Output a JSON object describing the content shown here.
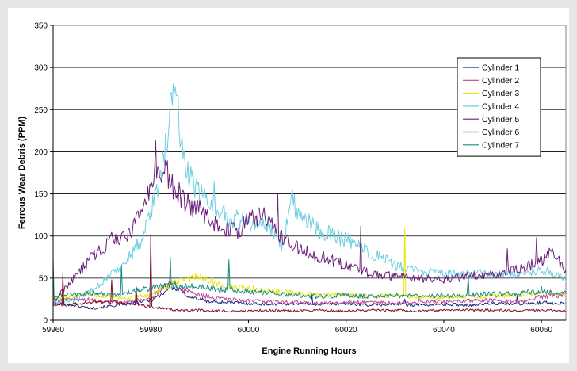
{
  "chart_data": {
    "type": "line",
    "title": "",
    "xlabel": "Engine Running Hours",
    "ylabel": "Ferrous Wear Debris (PPM)",
    "xlim": [
      59960,
      60065
    ],
    "ylim": [
      0,
      350
    ],
    "x_ticks": [
      59960,
      59980,
      60000,
      60020,
      60040,
      60060
    ],
    "y_ticks": [
      0,
      50,
      100,
      150,
      200,
      250,
      300,
      350
    ],
    "grid": "horizontal",
    "legend_position": "top-right",
    "series": [
      {
        "name": "Cylinder 1",
        "color": "#1f2a7a",
        "x": [
          59960,
          59964,
          59968,
          59972,
          59976,
          59980,
          59982,
          59984,
          59986,
          59988,
          59990,
          59992,
          59996,
          60000,
          60005,
          60010,
          60015,
          60020,
          60025,
          60030,
          60035,
          60040,
          60045,
          60050,
          60055,
          60060,
          60065
        ],
        "y": [
          20,
          18,
          14,
          17,
          20,
          24,
          30,
          40,
          35,
          28,
          25,
          22,
          21,
          20,
          19,
          20,
          19,
          20,
          18,
          19,
          18,
          19,
          18,
          20,
          19,
          21,
          20
        ],
        "spikes": [
          [
            59962,
            30
          ],
          [
            59984,
            45
          ],
          [
            60013,
            30
          ],
          [
            60032,
            25
          ],
          [
            60055,
            28
          ]
        ]
      },
      {
        "name": "Cylinder 2",
        "color": "#c0409a",
        "x": [
          59960,
          59964,
          59968,
          59972,
          59976,
          59980,
          59982,
          59984,
          59986,
          59990,
          59995,
          60000,
          60005,
          60010,
          60015,
          60020,
          60025,
          60030,
          60035,
          60040,
          60045,
          60050,
          60055,
          60060,
          60065
        ],
        "y": [
          22,
          25,
          24,
          22,
          23,
          26,
          35,
          45,
          38,
          30,
          25,
          23,
          22,
          21,
          20,
          21,
          22,
          20,
          21,
          22,
          23,
          24,
          22,
          28,
          30
        ],
        "spikes": [
          [
            59985,
            45
          ],
          [
            60035,
            28
          ],
          [
            60062,
            35
          ]
        ]
      },
      {
        "name": "Cylinder 3",
        "color": "#e6e600",
        "x": [
          59960,
          59964,
          59968,
          59972,
          59976,
          59980,
          59984,
          59988,
          59990,
          59995,
          60000,
          60005,
          60010,
          60015,
          60020,
          60025,
          60030,
          60035,
          60040,
          60045,
          60050,
          60055,
          60060,
          60065
        ],
        "y": [
          25,
          28,
          30,
          28,
          26,
          30,
          42,
          50,
          52,
          40,
          38,
          35,
          32,
          30,
          30,
          28,
          30,
          28,
          27,
          28,
          29,
          30,
          32,
          30
        ],
        "spikes": [
          [
            60032,
            110
          ]
        ]
      },
      {
        "name": "Cylinder 4",
        "color": "#6ccfe0",
        "x": [
          59960,
          59965,
          59970,
          59975,
          59978,
          59980,
          59982,
          59983,
          59984,
          59985,
          59986,
          59988,
          59990,
          59995,
          60000,
          60005,
          60007,
          60009,
          60010,
          60015,
          60020,
          60025,
          60030,
          60035,
          60040,
          60045,
          60050,
          60055,
          60060,
          60065
        ],
        "y": [
          20,
          25,
          45,
          70,
          95,
          130,
          170,
          205,
          255,
          265,
          215,
          170,
          150,
          125,
          115,
          110,
          90,
          150,
          125,
          105,
          95,
          80,
          65,
          58,
          55,
          55,
          56,
          55,
          60,
          50
        ],
        "spikes": [
          [
            59984,
            268
          ],
          [
            59985.5,
            267
          ],
          [
            59993,
            165
          ],
          [
            60009,
            155
          ]
        ]
      },
      {
        "name": "Cylinder 5",
        "color": "#6a1f7a",
        "x": [
          59960,
          59962,
          59965,
          59968,
          59970,
          59972,
          59975,
          59977,
          59979,
          59980,
          59981,
          59982,
          59983,
          59985,
          59987,
          59990,
          59993,
          59995,
          59998,
          60000,
          60003,
          60005,
          60007,
          60010,
          60015,
          60020,
          60025,
          60030,
          60035,
          60040,
          60045,
          60050,
          60055,
          60060,
          60062,
          60065
        ],
        "y": [
          22,
          35,
          55,
          75,
          85,
          95,
          100,
          115,
          140,
          160,
          185,
          170,
          180,
          155,
          140,
          130,
          115,
          110,
          105,
          120,
          125,
          110,
          100,
          85,
          75,
          65,
          55,
          52,
          50,
          48,
          52,
          55,
          60,
          70,
          80,
          60
        ],
        "spikes": [
          [
            59981,
            213
          ],
          [
            59983,
            190
          ],
          [
            60006,
            150
          ],
          [
            60023,
            112
          ],
          [
            60053,
            85
          ],
          [
            60059,
            98
          ]
        ]
      },
      {
        "name": "Cylinder 6",
        "color": "#7a1020",
        "x": [
          59960,
          59965,
          59970,
          59975,
          59980,
          59985,
          59990,
          59995,
          60000,
          60005,
          60010,
          60015,
          60020,
          60025,
          60030,
          60035,
          60040,
          60045,
          60050,
          60055,
          60060,
          60065
        ],
        "y": [
          18,
          20,
          22,
          20,
          16,
          12,
          12,
          11,
          11,
          12,
          11,
          12,
          11,
          12,
          12,
          11,
          12,
          12,
          12,
          11,
          12,
          11
        ],
        "spikes": [
          [
            59962,
            55
          ],
          [
            59972,
            48
          ],
          [
            59977,
            40
          ],
          [
            59980,
            102
          ]
        ]
      },
      {
        "name": "Cylinder 7",
        "color": "#1a8a80",
        "x": [
          59960,
          59964,
          59968,
          59972,
          59976,
          59980,
          59984,
          59988,
          59992,
          59996,
          60000,
          60005,
          60010,
          60015,
          60020,
          60025,
          60030,
          60035,
          60040,
          60045,
          60050,
          60055,
          60060,
          60065
        ],
        "y": [
          28,
          30,
          32,
          30,
          34,
          38,
          42,
          40,
          38,
          36,
          34,
          32,
          30,
          28,
          30,
          28,
          30,
          28,
          29,
          30,
          31,
          32,
          34,
          32
        ],
        "spikes": [
          [
            59960,
            75
          ],
          [
            59974,
            65
          ],
          [
            59984,
            75
          ],
          [
            59996,
            72
          ],
          [
            60045,
            52
          ],
          [
            60060,
            40
          ]
        ]
      }
    ]
  }
}
